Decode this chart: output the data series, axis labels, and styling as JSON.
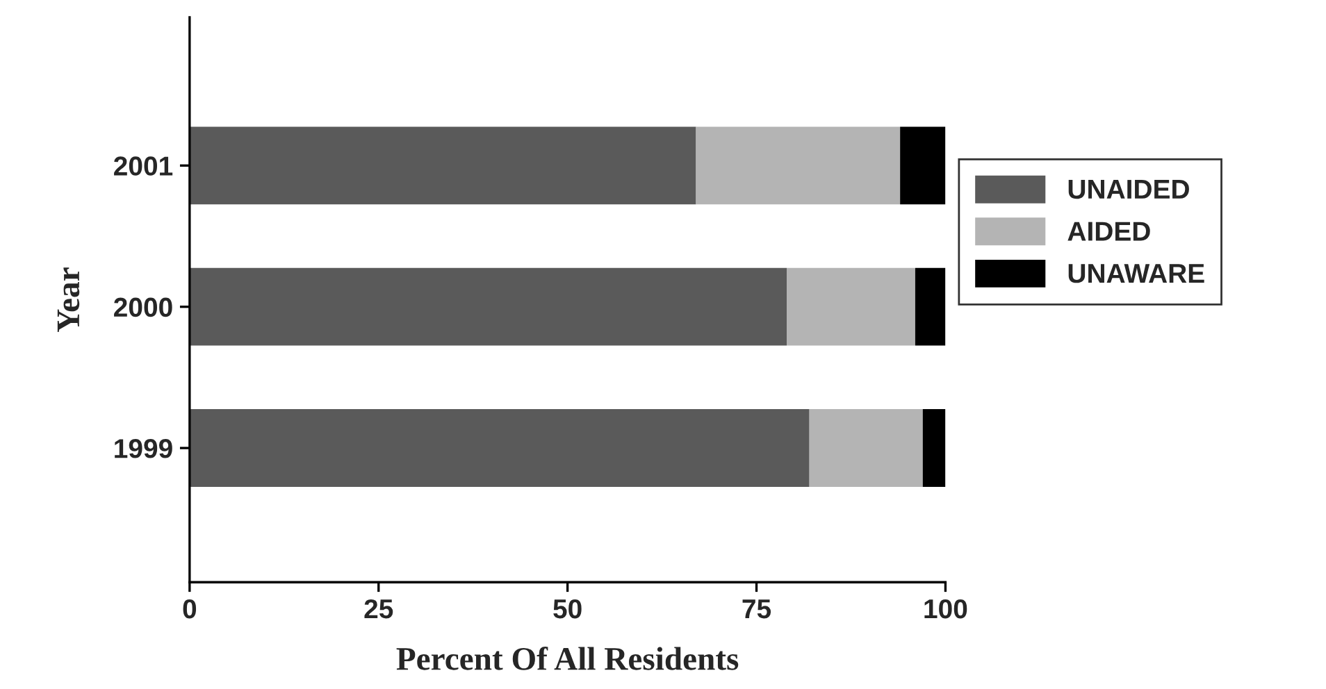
{
  "chart_data": {
    "type": "bar",
    "orientation": "horizontal",
    "stacked": true,
    "xlabel": "Percent Of All Residents",
    "ylabel": "Year",
    "categories": [
      "2001",
      "2000",
      "1999"
    ],
    "series": [
      {
        "name": "UNAIDED",
        "color": "#5a5a5a",
        "values": [
          67,
          79,
          82
        ]
      },
      {
        "name": "AIDED",
        "color": "#b4b4b4",
        "values": [
          27,
          17,
          15
        ]
      },
      {
        "name": "UNAWARE",
        "color": "#000000",
        "values": [
          6,
          4,
          3
        ]
      }
    ],
    "xlim": [
      0,
      100
    ],
    "xticks": [
      0,
      25,
      50,
      75,
      100
    ],
    "grid": false,
    "legend": "right"
  }
}
